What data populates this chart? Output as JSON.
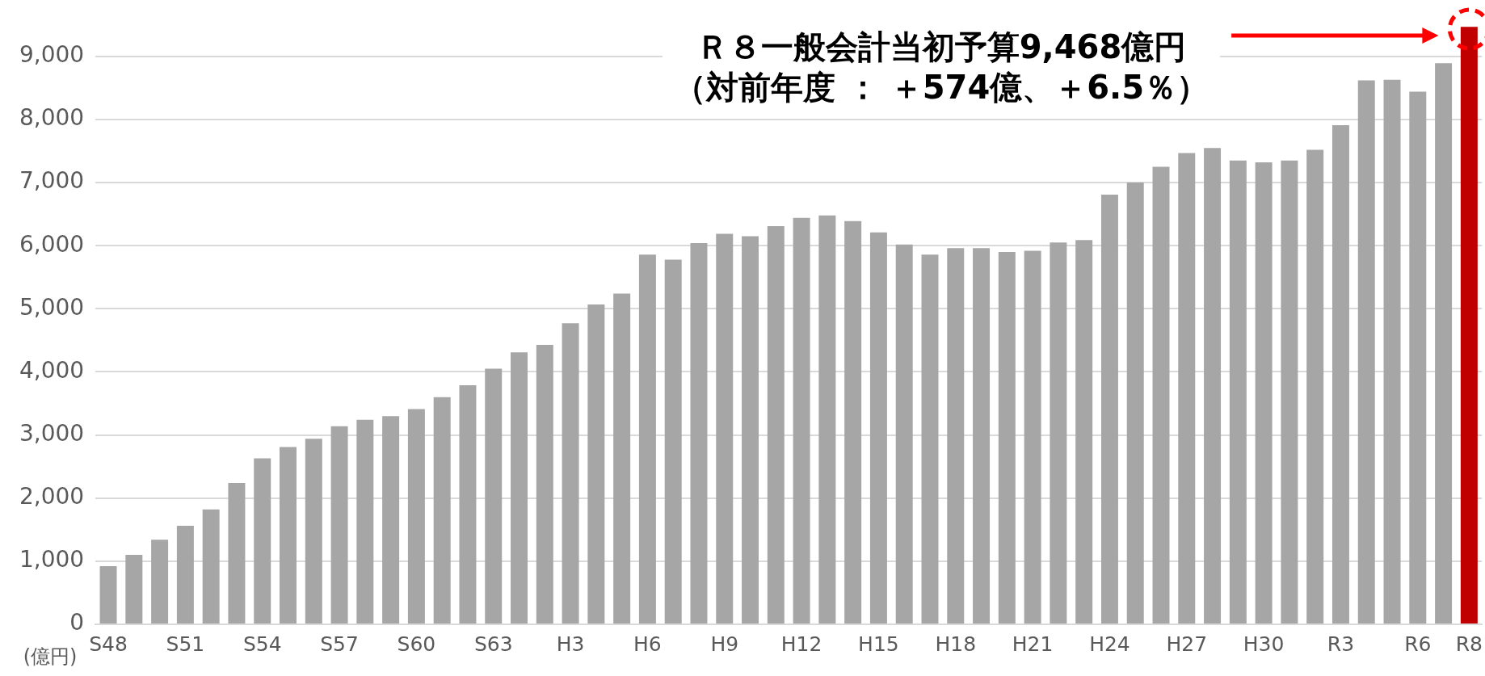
{
  "chart_data": {
    "type": "bar",
    "categories": [
      "S48",
      null,
      null,
      "S51",
      null,
      null,
      "S54",
      null,
      null,
      "S57",
      null,
      null,
      "S60",
      null,
      null,
      "S63",
      null,
      null,
      "H3",
      null,
      null,
      "H6",
      null,
      null,
      "H9",
      null,
      null,
      "H12",
      null,
      null,
      "H15",
      null,
      null,
      "H18",
      null,
      null,
      "H21",
      null,
      null,
      "H24",
      null,
      null,
      "H27",
      null,
      null,
      "H30",
      null,
      null,
      "R3",
      null,
      null,
      "R6",
      null,
      "R8"
    ],
    "values": [
      920,
      1100,
      1340,
      1560,
      1820,
      2240,
      2630,
      2810,
      2940,
      3140,
      3240,
      3300,
      3410,
      3600,
      3790,
      4050,
      4310,
      4430,
      4770,
      5070,
      5240,
      5860,
      5780,
      6040,
      6190,
      6150,
      6310,
      6440,
      6480,
      6390,
      6210,
      6020,
      5860,
      5960,
      5960,
      5900,
      5920,
      6050,
      6090,
      6810,
      7000,
      7250,
      7470,
      7550,
      7350,
      7320,
      7350,
      7520,
      7910,
      8620,
      8630,
      8440,
      8894,
      9468
    ],
    "colors": [
      "#a6a6a6",
      "#a6a6a6",
      "#a6a6a6",
      "#a6a6a6",
      "#a6a6a6",
      "#a6a6a6",
      "#a6a6a6",
      "#a6a6a6",
      "#a6a6a6",
      "#a6a6a6",
      "#a6a6a6",
      "#a6a6a6",
      "#a6a6a6",
      "#a6a6a6",
      "#a6a6a6",
      "#a6a6a6",
      "#a6a6a6",
      "#a6a6a6",
      "#a6a6a6",
      "#a6a6a6",
      "#a6a6a6",
      "#a6a6a6",
      "#a6a6a6",
      "#a6a6a6",
      "#a6a6a6",
      "#a6a6a6",
      "#a6a6a6",
      "#a6a6a6",
      "#a6a6a6",
      "#a6a6a6",
      "#a6a6a6",
      "#a6a6a6",
      "#a6a6a6",
      "#a6a6a6",
      "#a6a6a6",
      "#a6a6a6",
      "#a6a6a6",
      "#a6a6a6",
      "#a6a6a6",
      "#a6a6a6",
      "#a6a6a6",
      "#a6a6a6",
      "#a6a6a6",
      "#a6a6a6",
      "#a6a6a6",
      "#a6a6a6",
      "#a6a6a6",
      "#a6a6a6",
      "#a6a6a6",
      "#a6a6a6",
      "#a6a6a6",
      "#a6a6a6",
      "#a6a6a6",
      "#c00000"
    ],
    "ylabel": "(億円)",
    "ylim": [
      0,
      9500
    ],
    "yticks": [
      0,
      {
        "value": 1000,
        "label": "1,000"
      },
      {
        "value": 2000,
        "label": "2,000"
      },
      {
        "value": 3000,
        "label": "3,000"
      },
      {
        "value": 4000,
        "label": "4,000"
      },
      {
        "value": 5000,
        "label": "5,000"
      },
      {
        "value": 6000,
        "label": "6,000"
      },
      {
        "value": 7000,
        "label": "7,000"
      },
      {
        "value": 8000,
        "label": "8,000"
      },
      {
        "value": 9000,
        "label": "9,000"
      }
    ],
    "grid": "y",
    "legend": false,
    "annotations": [
      "Ｒ８一般会計当初予算9,468億円",
      "（対前年度 ： ＋574億、＋6.5％）"
    ]
  }
}
